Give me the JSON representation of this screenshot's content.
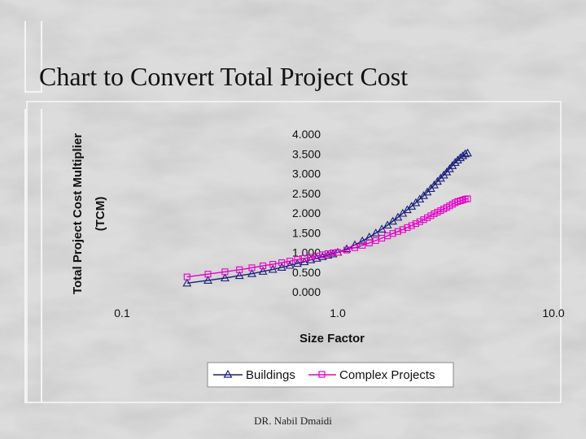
{
  "slide": {
    "title": "Chart to Convert Total Project Cost",
    "footer": "DR. Nabil Dmaidi"
  },
  "chart_data": {
    "type": "line",
    "xscale": "log",
    "xlabel": "Size Factor",
    "ylabel_line1": "Total Project Cost Multiplier",
    "ylabel_line2": "(TCM)",
    "xlim": [
      0.1,
      10.0
    ],
    "ylim": [
      0.0,
      4.0
    ],
    "x_ticks": [
      "0.1",
      "1.0",
      "10.0"
    ],
    "y_ticks": [
      "0.000",
      "0.500",
      "1.000",
      "1.500",
      "2.000",
      "2.500",
      "3.000",
      "3.500",
      "4.000"
    ],
    "grid": false,
    "legend_position": "bottom",
    "series": [
      {
        "name": "Buildings",
        "color": "#1b1f7a",
        "marker": "triangle",
        "x": [
          0.2,
          0.25,
          0.3,
          0.35,
          0.4,
          0.45,
          0.5,
          0.55,
          0.6,
          0.65,
          0.7,
          0.75,
          0.8,
          0.85,
          0.9,
          0.95,
          1.0,
          1.1,
          1.2,
          1.3,
          1.4,
          1.5,
          1.6,
          1.7,
          1.8,
          1.9,
          2.0,
          2.1,
          2.2,
          2.3,
          2.4,
          2.5,
          2.6,
          2.7,
          2.8,
          2.9,
          3.0,
          3.1,
          3.2,
          3.3,
          3.4,
          3.5,
          3.6,
          3.7,
          3.8,
          3.9,
          4.0
        ],
        "values": [
          0.22,
          0.29,
          0.35,
          0.41,
          0.46,
          0.52,
          0.57,
          0.62,
          0.67,
          0.72,
          0.76,
          0.81,
          0.85,
          0.89,
          0.93,
          0.96,
          1.0,
          1.09,
          1.19,
          1.29,
          1.39,
          1.49,
          1.59,
          1.69,
          1.79,
          1.89,
          1.99,
          2.08,
          2.17,
          2.26,
          2.35,
          2.44,
          2.53,
          2.62,
          2.71,
          2.8,
          2.88,
          2.96,
          3.04,
          3.12,
          3.2,
          3.28,
          3.34,
          3.4,
          3.45,
          3.5,
          3.52
        ]
      },
      {
        "name": "Complex Projects",
        "color": "#e600c8",
        "marker": "square",
        "x": [
          0.2,
          0.25,
          0.3,
          0.35,
          0.4,
          0.45,
          0.5,
          0.55,
          0.6,
          0.65,
          0.7,
          0.75,
          0.8,
          0.85,
          0.9,
          0.95,
          1.0,
          1.1,
          1.2,
          1.3,
          1.4,
          1.5,
          1.6,
          1.7,
          1.8,
          1.9,
          2.0,
          2.1,
          2.2,
          2.3,
          2.4,
          2.5,
          2.6,
          2.7,
          2.8,
          2.9,
          3.0,
          3.1,
          3.2,
          3.3,
          3.4,
          3.5,
          3.6,
          3.7,
          3.8,
          3.9,
          4.0
        ],
        "values": [
          0.38,
          0.45,
          0.51,
          0.56,
          0.61,
          0.66,
          0.7,
          0.74,
          0.78,
          0.82,
          0.85,
          0.88,
          0.91,
          0.94,
          0.97,
          0.99,
          1.0,
          1.06,
          1.12,
          1.18,
          1.24,
          1.3,
          1.36,
          1.42,
          1.48,
          1.53,
          1.58,
          1.63,
          1.68,
          1.73,
          1.78,
          1.83,
          1.88,
          1.93,
          1.98,
          2.02,
          2.06,
          2.1,
          2.14,
          2.18,
          2.22,
          2.26,
          2.29,
          2.31,
          2.33,
          2.35,
          2.36
        ]
      }
    ]
  }
}
